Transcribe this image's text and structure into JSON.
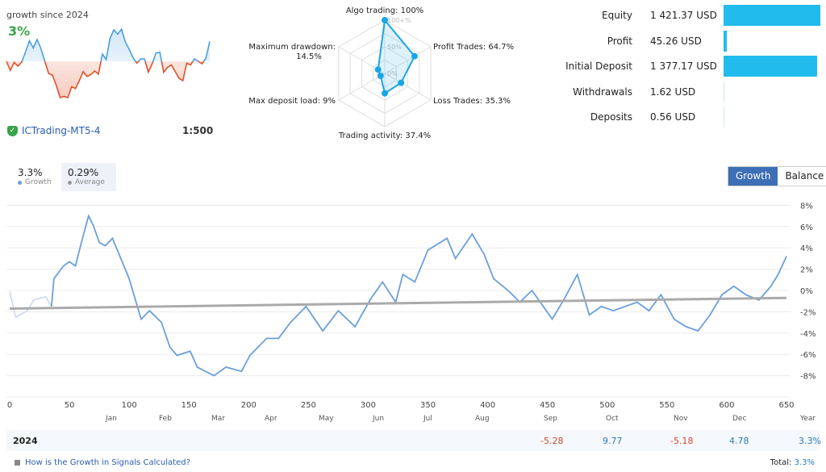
{
  "summary": {
    "growth_label": "growth since 2024",
    "growth_value": "3%",
    "broker": "ICTrading-MT5-4",
    "leverage": "1:500"
  },
  "stats": [
    {
      "label": "Equity",
      "value": "1 421.37 USD",
      "amount": 1421.37
    },
    {
      "label": "Profit",
      "value": "45.26 USD",
      "amount": 45.26
    },
    {
      "label": "Initial Deposit",
      "value": "1 377.17 USD",
      "amount": 1377.17
    },
    {
      "label": "Withdrawals",
      "value": "1.62 USD",
      "amount": 1.62
    },
    {
      "label": "Deposits",
      "value": "0.56 USD",
      "amount": 0.56
    }
  ],
  "colors": {
    "accent": "#3d6fb6",
    "bar": "#22bbee",
    "positive": "#2a7ab8",
    "negative": "#d2492b",
    "growth_line": "#6a9fdc",
    "average_line": "#aaaaaa",
    "mini_up": "#4a9fe0",
    "mini_down": "#e0502a"
  },
  "legend": {
    "growth_value": "3.3%",
    "growth_name": "Growth",
    "average_value": "0.29%",
    "average_name": "Average"
  },
  "tabs": {
    "growth": "Growth",
    "balance": "Balance",
    "active": "growth"
  },
  "table": {
    "year": "2024",
    "year_header": "Year",
    "months": [
      "Jan",
      "Feb",
      "Mar",
      "Apr",
      "May",
      "Jun",
      "Jul",
      "Aug",
      "Sep",
      "Oct",
      "Nov",
      "Dec"
    ],
    "values": [
      "",
      "",
      "",
      "",
      "",
      "",
      "",
      "",
      "-5.28",
      "9.77",
      "-5.18",
      "4.78"
    ],
    "year_total": "3.3%"
  },
  "footer": {
    "help_link": "How is the Growth in Signals Calculated?",
    "total_label": "Total:",
    "total_value": "3.3%"
  },
  "chart_data": [
    {
      "type": "radar",
      "axes": [
        {
          "label": "Algo trading: 100%",
          "value": 100
        },
        {
          "label": "Profit Trades: 64.7%",
          "value": 64.7
        },
        {
          "label": "Loss Trades: 35.3%",
          "value": 35.3
        },
        {
          "label": "Trading activity: 37.4%",
          "value": 37.4
        },
        {
          "label": "Max deposit load: 9%",
          "value": 9
        },
        {
          "label": "Maximum drawdown:",
          "label2": "14.5%",
          "value": 14.5
        }
      ],
      "ring_labels": [
        "100+%",
        "50%",
        "0%"
      ]
    },
    {
      "type": "line",
      "xlim": [
        0,
        650
      ],
      "ylim": [
        -9,
        9
      ],
      "xticks": [
        0,
        50,
        100,
        150,
        200,
        250,
        300,
        350,
        400,
        450,
        500,
        550,
        600,
        650
      ],
      "yticks": [
        "8%",
        "6%",
        "4%",
        "2%",
        "0%",
        "-2%",
        "-4%",
        "-6%",
        "-8%"
      ],
      "ytick_values": [
        8,
        6,
        4,
        2,
        0,
        -2,
        -4,
        -6,
        -8
      ],
      "series": [
        {
          "name": "Growth",
          "x": [
            0,
            5,
            15,
            20,
            30,
            35,
            37,
            45,
            50,
            55,
            60,
            66,
            70,
            75,
            80,
            86,
            93,
            100,
            110,
            117,
            127,
            134,
            140,
            151,
            157,
            171,
            181,
            194,
            201,
            215,
            225,
            235,
            248,
            262,
            275,
            289,
            302,
            312,
            323,
            329,
            339,
            350,
            366,
            373,
            387,
            397,
            405,
            417,
            427,
            437,
            444,
            454,
            464,
            475,
            485,
            495,
            505,
            515,
            525,
            535,
            545,
            556,
            566,
            576,
            586,
            596,
            606,
            616,
            627,
            637,
            643,
            650
          ],
          "y": [
            -0.1,
            -2.5,
            -1.9,
            -0.9,
            -0.6,
            -1.5,
            1.1,
            2.3,
            2.7,
            2.3,
            4.5,
            7,
            6.1,
            4.5,
            4.2,
            4.9,
            3.0,
            1.1,
            -2.7,
            -1.9,
            -3.0,
            -5.3,
            -6.1,
            -5.7,
            -7.2,
            -8,
            -7.2,
            -7.6,
            -6.1,
            -4.5,
            -4.5,
            -3,
            -1.5,
            -3.8,
            -1.9,
            -3.4,
            -0.8,
            0.8,
            -1.1,
            1.5,
            0.8,
            3.8,
            4.9,
            3.0,
            5.3,
            3.4,
            1.1,
            0,
            -1.1,
            0,
            -1.1,
            -2.7,
            -0.8,
            1.5,
            -2.3,
            -1.5,
            -1.9,
            -1.5,
            -1.1,
            -1.9,
            -0.4,
            -2.7,
            -3.4,
            -3.8,
            -2.3,
            -0.4,
            0.4,
            -0.4,
            -0.9,
            0.4,
            1.5,
            3.2
          ]
        },
        {
          "name": "Average",
          "x": [
            0,
            650
          ],
          "y": [
            -1.7,
            -0.7
          ]
        }
      ]
    },
    {
      "type": "area",
      "title": "growth since 2024",
      "y": [
        0,
        -1.5,
        -0.2,
        -0.8,
        -0.1,
        1.6,
        3.4,
        2.2,
        3.6,
        2.1,
        0,
        -2,
        -2.3,
        -4,
        -6,
        -5.8,
        -6,
        -4.2,
        -4.5,
        -3.2,
        -1.7,
        -2.5,
        -2.2,
        -1.6,
        -2.1,
        1.2,
        0.3,
        3.8,
        5.2,
        4.5,
        5.3,
        3.2,
        2,
        0.6,
        -0.3,
        0.4,
        0.4,
        -1.8,
        -0.4,
        1.4,
        1.5,
        -1.8,
        -1,
        -0.6,
        -1.7,
        -2.8,
        -3.2,
        -0.3,
        -0.6,
        0.4,
        0,
        -0.4,
        0.5,
        3.3
      ]
    }
  ]
}
